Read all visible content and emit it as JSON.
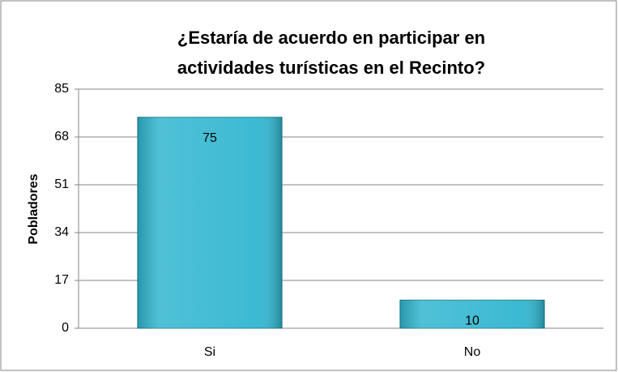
{
  "chart_data": {
    "type": "bar",
    "title": "¿Estaría de acuerdo en participar en actividades turísticas en el Recinto?",
    "y_label": "Pobladores",
    "categories": [
      "Si",
      "No"
    ],
    "values": [
      75,
      10
    ],
    "color": "#31b6d0",
    "ylim": [
      0,
      85
    ],
    "yticks": [
      0,
      17,
      34,
      51,
      68,
      85
    ],
    "grid": true
  }
}
